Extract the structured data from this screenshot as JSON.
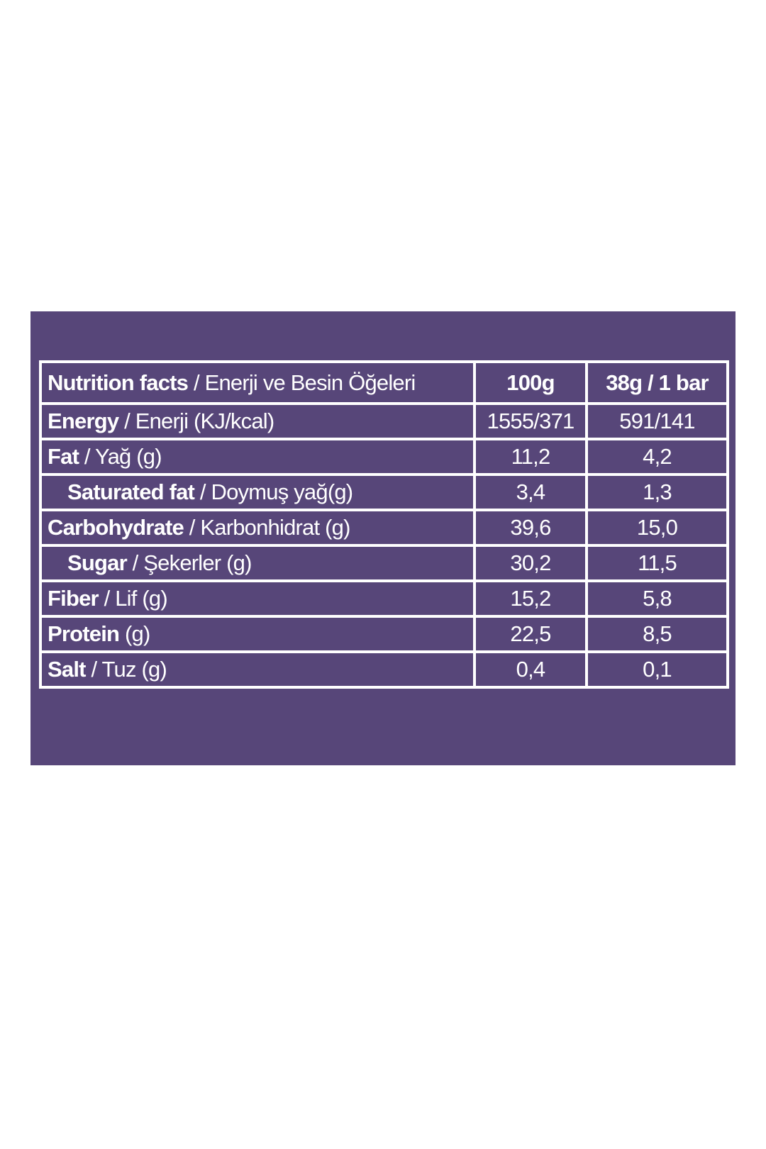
{
  "table": {
    "header": {
      "label_bold": "Nutrition facts",
      "label_rest": " / Enerji ve Besin Öğeleri",
      "col1": "100g",
      "col2": "38g / 1 bar"
    },
    "rows": [
      {
        "label_bold": "Energy",
        "label_rest": " / Enerji (KJ/kcal)",
        "col1": "1555/371",
        "col2": "591/141"
      },
      {
        "label_bold": "Fat",
        "label_rest": " / Yağ (g)",
        "col1": "11,2",
        "col2": "4,2",
        "sub_rows": [
          {
            "label_bold": "Saturated fat",
            "label_rest": " / Doymuş yağ(g)",
            "col1": "3,4",
            "col2": "1,3"
          }
        ]
      },
      {
        "label_bold": "Carbohydrate",
        "label_rest": " / Karbonhidrat (g)",
        "col1": "39,6",
        "col2": "15,0",
        "sub_rows": [
          {
            "label_bold": "Sugar",
            "label_rest": " / Şekerler (g)",
            "col1": "30,2",
            "col2": "11,5"
          }
        ]
      },
      {
        "label_bold": "Fiber",
        "label_rest": " / Lif (g)",
        "col1": "15,2",
        "col2": "5,8"
      },
      {
        "label_bold": "Protein",
        "label_rest": " (g)",
        "col1": "22,5",
        "col2": "8,5"
      },
      {
        "label_bold": "Salt",
        "label_rest": " / Tuz (g)",
        "col1": "0,4",
        "col2": "0,1"
      }
    ]
  }
}
